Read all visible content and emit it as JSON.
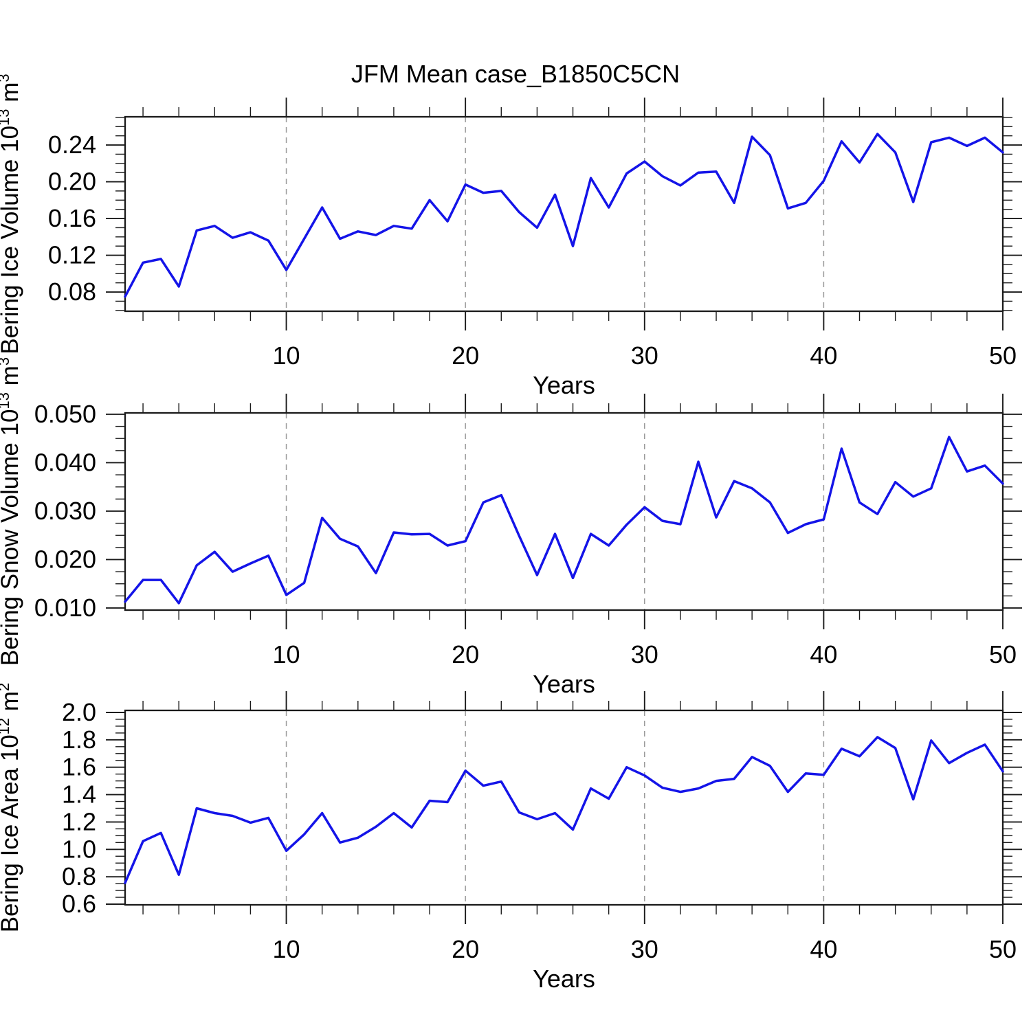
{
  "title": "JFM Mean case_B1850C5CN",
  "colors": {
    "line": "#1414e8",
    "grid": "#9a9a9a",
    "frame": "#1a1a1a",
    "text": "#000000"
  },
  "x_axis": {
    "label": "Years",
    "lim": [
      1,
      50
    ],
    "major_ticks": [
      10,
      20,
      30,
      40,
      50
    ],
    "tick_labels": [
      "10",
      "20",
      "30",
      "40",
      "50"
    ],
    "minor_step": 2,
    "grid_years": [
      10,
      20,
      30,
      40
    ]
  },
  "chart_data": [
    {
      "type": "line",
      "name": "bering-ice-volume",
      "ylabel": "Bering Ice Volume 10^13 m^3",
      "ylabel_parts": [
        {
          "t": "Bering Ice Volume 10"
        },
        {
          "t": "13",
          "sup": true
        },
        {
          "t": " m"
        },
        {
          "t": "3",
          "sup": true
        }
      ],
      "xlabel": "Years",
      "ylim": [
        0.0591,
        0.2707
      ],
      "yticks": [
        0.08,
        0.12,
        0.16,
        0.2,
        0.24
      ],
      "ytick_labels": [
        "0.08",
        "0.12",
        "0.16",
        "0.20",
        "0.24"
      ],
      "y_minor_step": 0.01,
      "x": [
        1,
        2,
        3,
        4,
        5,
        6,
        7,
        8,
        9,
        10,
        11,
        12,
        13,
        14,
        15,
        16,
        17,
        18,
        19,
        20,
        21,
        22,
        23,
        24,
        25,
        26,
        27,
        28,
        29,
        30,
        31,
        32,
        33,
        34,
        35,
        36,
        37,
        38,
        39,
        40,
        41,
        42,
        43,
        44,
        45,
        46,
        47,
        48,
        49,
        50
      ],
      "values": [
        0.075,
        0.112,
        0.116,
        0.086,
        0.147,
        0.152,
        0.139,
        0.145,
        0.136,
        0.104,
        0.138,
        0.172,
        0.138,
        0.146,
        0.142,
        0.152,
        0.149,
        0.18,
        0.157,
        0.197,
        0.188,
        0.19,
        0.167,
        0.15,
        0.186,
        0.13,
        0.204,
        0.172,
        0.209,
        0.222,
        0.206,
        0.196,
        0.21,
        0.211,
        0.177,
        0.249,
        0.229,
        0.171,
        0.177,
        0.201,
        0.244,
        0.221,
        0.252,
        0.232,
        0.178,
        0.243,
        0.248,
        0.239,
        0.248,
        0.232
      ]
    },
    {
      "type": "line",
      "name": "bering-snow-volume",
      "ylabel": "Bering Snow Volume 10^13 m^3",
      "ylabel_parts": [
        {
          "t": "Bering Snow Volume 10"
        },
        {
          "t": "13",
          "sup": true
        },
        {
          "t": " m"
        },
        {
          "t": "3",
          "sup": true
        }
      ],
      "xlabel": "Years",
      "ylim": [
        0.00957,
        0.05028
      ],
      "yticks": [
        0.01,
        0.02,
        0.03,
        0.04,
        0.05
      ],
      "ytick_labels": [
        "0.010",
        "0.020",
        "0.030",
        "0.040",
        "0.050"
      ],
      "y_minor_step": 0.0025,
      "x": [
        1,
        2,
        3,
        4,
        5,
        6,
        7,
        8,
        9,
        10,
        11,
        12,
        13,
        14,
        15,
        16,
        17,
        18,
        19,
        20,
        21,
        22,
        23,
        24,
        25,
        26,
        27,
        28,
        29,
        30,
        31,
        32,
        33,
        34,
        35,
        36,
        37,
        38,
        39,
        40,
        41,
        42,
        43,
        44,
        45,
        46,
        47,
        48,
        49,
        50
      ],
      "values": [
        0.0113,
        0.0158,
        0.0158,
        0.011,
        0.0188,
        0.0216,
        0.0175,
        0.0192,
        0.0208,
        0.0127,
        0.0152,
        0.0286,
        0.0243,
        0.0227,
        0.0172,
        0.0256,
        0.0252,
        0.0253,
        0.0229,
        0.0238,
        0.0318,
        0.0333,
        0.0249,
        0.0168,
        0.0253,
        0.0162,
        0.0253,
        0.0229,
        0.0272,
        0.0308,
        0.028,
        0.0273,
        0.0402,
        0.0287,
        0.0362,
        0.0347,
        0.0318,
        0.0255,
        0.0273,
        0.0283,
        0.0429,
        0.0318,
        0.0294,
        0.036,
        0.033,
        0.0347,
        0.0453,
        0.0382,
        0.0394,
        0.0357
      ]
    },
    {
      "type": "line",
      "name": "bering-ice-area",
      "ylabel": "Bering Ice Area 10^12 m^2",
      "ylabel_parts": [
        {
          "t": "Bering Ice Area 10"
        },
        {
          "t": "12",
          "sup": true
        },
        {
          "t": " m"
        },
        {
          "t": "2",
          "sup": true
        }
      ],
      "xlabel": "Years",
      "ylim": [
        0.595,
        2.015
      ],
      "yticks": [
        0.6,
        0.8,
        1.0,
        1.2,
        1.4,
        1.6,
        1.8,
        2.0
      ],
      "ytick_labels": [
        "0.6",
        "0.8",
        "1.0",
        "1.2",
        "1.4",
        "1.6",
        "1.8",
        "2.0"
      ],
      "y_minor_step": 0.05,
      "x": [
        1,
        2,
        3,
        4,
        5,
        6,
        7,
        8,
        9,
        10,
        11,
        12,
        13,
        14,
        15,
        16,
        17,
        18,
        19,
        20,
        21,
        22,
        23,
        24,
        25,
        26,
        27,
        28,
        29,
        30,
        31,
        32,
        33,
        34,
        35,
        36,
        37,
        38,
        39,
        40,
        41,
        42,
        43,
        44,
        45,
        46,
        47,
        48,
        49,
        50
      ],
      "values": [
        0.755,
        1.06,
        1.12,
        0.815,
        1.3,
        1.265,
        1.245,
        1.195,
        1.23,
        0.99,
        1.11,
        1.265,
        1.05,
        1.085,
        1.165,
        1.265,
        1.16,
        1.355,
        1.345,
        1.575,
        1.465,
        1.495,
        1.27,
        1.22,
        1.265,
        1.145,
        1.445,
        1.37,
        1.6,
        1.54,
        1.45,
        1.42,
        1.445,
        1.5,
        1.515,
        1.675,
        1.61,
        1.42,
        1.555,
        1.545,
        1.735,
        1.68,
        1.82,
        1.74,
        1.365,
        1.795,
        1.63,
        1.705,
        1.765,
        1.57
      ]
    }
  ]
}
